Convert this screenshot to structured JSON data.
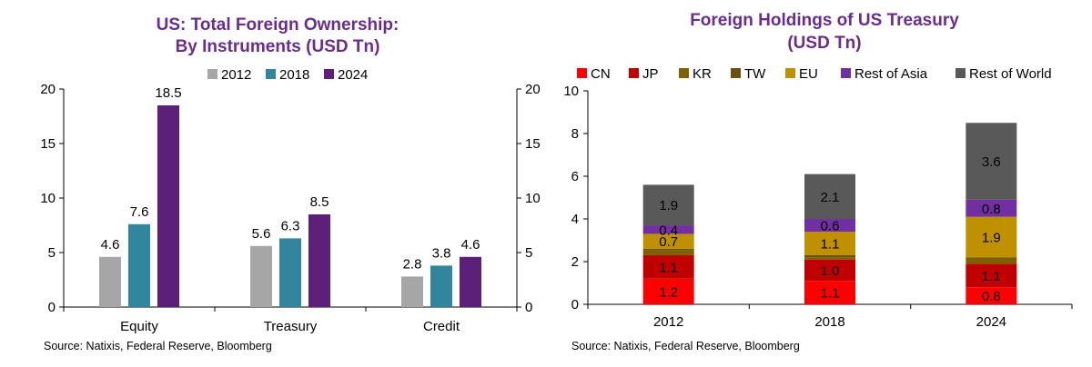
{
  "chart_data": [
    {
      "type": "bar",
      "title": "US: Total Foreign Ownership:",
      "subtitle": "By Instruments (USD Tn)",
      "categories": [
        "Equity",
        "Treasury",
        "Credit"
      ],
      "series": [
        {
          "name": "2012",
          "color": "#a6a6a6",
          "values": [
            4.6,
            5.6,
            2.8
          ]
        },
        {
          "name": "2018",
          "color": "#31859c",
          "values": [
            7.6,
            6.3,
            3.8
          ]
        },
        {
          "name": "2024",
          "color": "#5c1f7a",
          "values": [
            18.5,
            8.5,
            4.6
          ]
        }
      ],
      "value_labels": [
        [
          "4.6",
          "5.6",
          "2.8"
        ],
        [
          "7.6",
          "6.3",
          "3.8"
        ],
        [
          "18.5",
          "8.5",
          "4.6"
        ]
      ],
      "ylim": [
        0,
        20
      ],
      "yticks": [
        "0",
        "5",
        "10",
        "15",
        "20"
      ],
      "xlabel": "",
      "ylabel": "",
      "legend_position": "top",
      "source": "Source: Natixis, Federal Reserve, Bloomberg"
    },
    {
      "type": "bar",
      "stacked": true,
      "title": "Foreign Holdings of US Treasury",
      "subtitle": "(USD Tn)",
      "categories": [
        "2012",
        "2018",
        "2024"
      ],
      "series": [
        {
          "name": "CN",
          "color": "#ff0000",
          "values": [
            1.2,
            1.1,
            0.8
          ],
          "label_text": [
            "1.2",
            "1.1",
            "0.8"
          ]
        },
        {
          "name": "JP",
          "color": "#c00000",
          "values": [
            1.1,
            1.0,
            1.1
          ],
          "label_text": [
            "1.1",
            "1.0",
            "1.1"
          ]
        },
        {
          "name": "KR",
          "color": "#7f6000",
          "values": [
            0.25,
            0.1,
            0.25
          ],
          "label_text": [
            "",
            "",
            ""
          ]
        },
        {
          "name": "TW",
          "color": "#6b4f10",
          "values": [
            0.05,
            0.1,
            0.05
          ],
          "label_text": [
            "",
            "",
            ""
          ]
        },
        {
          "name": "EU",
          "color": "#bf9000",
          "values": [
            0.7,
            1.1,
            1.9
          ],
          "label_text": [
            "0.7",
            "1.1",
            "1.9"
          ]
        },
        {
          "name": "Rest of Asia",
          "color": "#7030a0",
          "values": [
            0.4,
            0.6,
            0.8
          ],
          "label_text": [
            "0.4",
            "0.6",
            "0.8"
          ]
        },
        {
          "name": "Rest of World",
          "color": "#595959",
          "values": [
            1.9,
            2.1,
            3.6
          ],
          "label_text": [
            "1.9",
            "2.1",
            "3.6"
          ]
        }
      ],
      "ylim": [
        0,
        10
      ],
      "yticks": [
        "0",
        "2",
        "4",
        "6",
        "8",
        "10"
      ],
      "xlabel": "",
      "ylabel": "",
      "legend_position": "top",
      "source": "Source: Natixis, Federal Reserve, Bloomberg"
    }
  ]
}
